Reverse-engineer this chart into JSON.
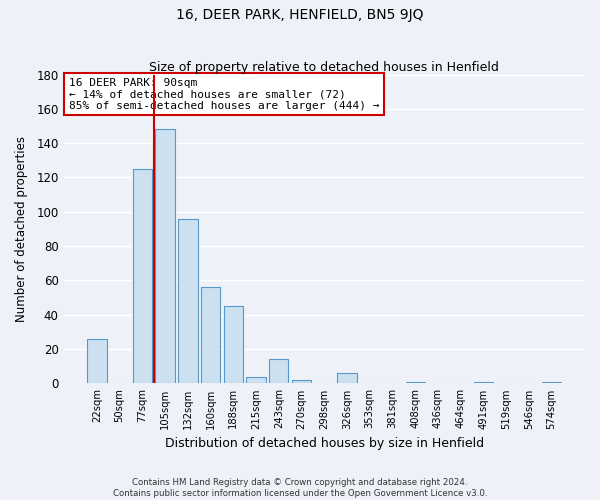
{
  "title": "16, DEER PARK, HENFIELD, BN5 9JQ",
  "subtitle": "Size of property relative to detached houses in Henfield",
  "xlabel": "Distribution of detached houses by size in Henfield",
  "ylabel": "Number of detached properties",
  "bar_labels": [
    "22sqm",
    "50sqm",
    "77sqm",
    "105sqm",
    "132sqm",
    "160sqm",
    "188sqm",
    "215sqm",
    "243sqm",
    "270sqm",
    "298sqm",
    "326sqm",
    "353sqm",
    "381sqm",
    "408sqm",
    "436sqm",
    "464sqm",
    "491sqm",
    "519sqm",
    "546sqm",
    "574sqm"
  ],
  "bar_values": [
    26,
    0,
    125,
    148,
    96,
    56,
    45,
    4,
    14,
    2,
    0,
    6,
    0,
    0,
    1,
    0,
    0,
    1,
    0,
    0,
    1
  ],
  "bar_color": "#cce0f0",
  "bar_edge_color": "#5599cc",
  "vline_x": 2.5,
  "vline_color": "#cc0000",
  "annotation_title": "16 DEER PARK: 90sqm",
  "annotation_line1": "← 14% of detached houses are smaller (72)",
  "annotation_line2": "85% of semi-detached houses are larger (444) →",
  "ylim": [
    0,
    180
  ],
  "yticks": [
    0,
    20,
    40,
    60,
    80,
    100,
    120,
    140,
    160,
    180
  ],
  "footer_line1": "Contains HM Land Registry data © Crown copyright and database right 2024.",
  "footer_line2": "Contains public sector information licensed under the Open Government Licence v3.0.",
  "bg_color": "#eef2f8",
  "grid_color": "#ffffff"
}
